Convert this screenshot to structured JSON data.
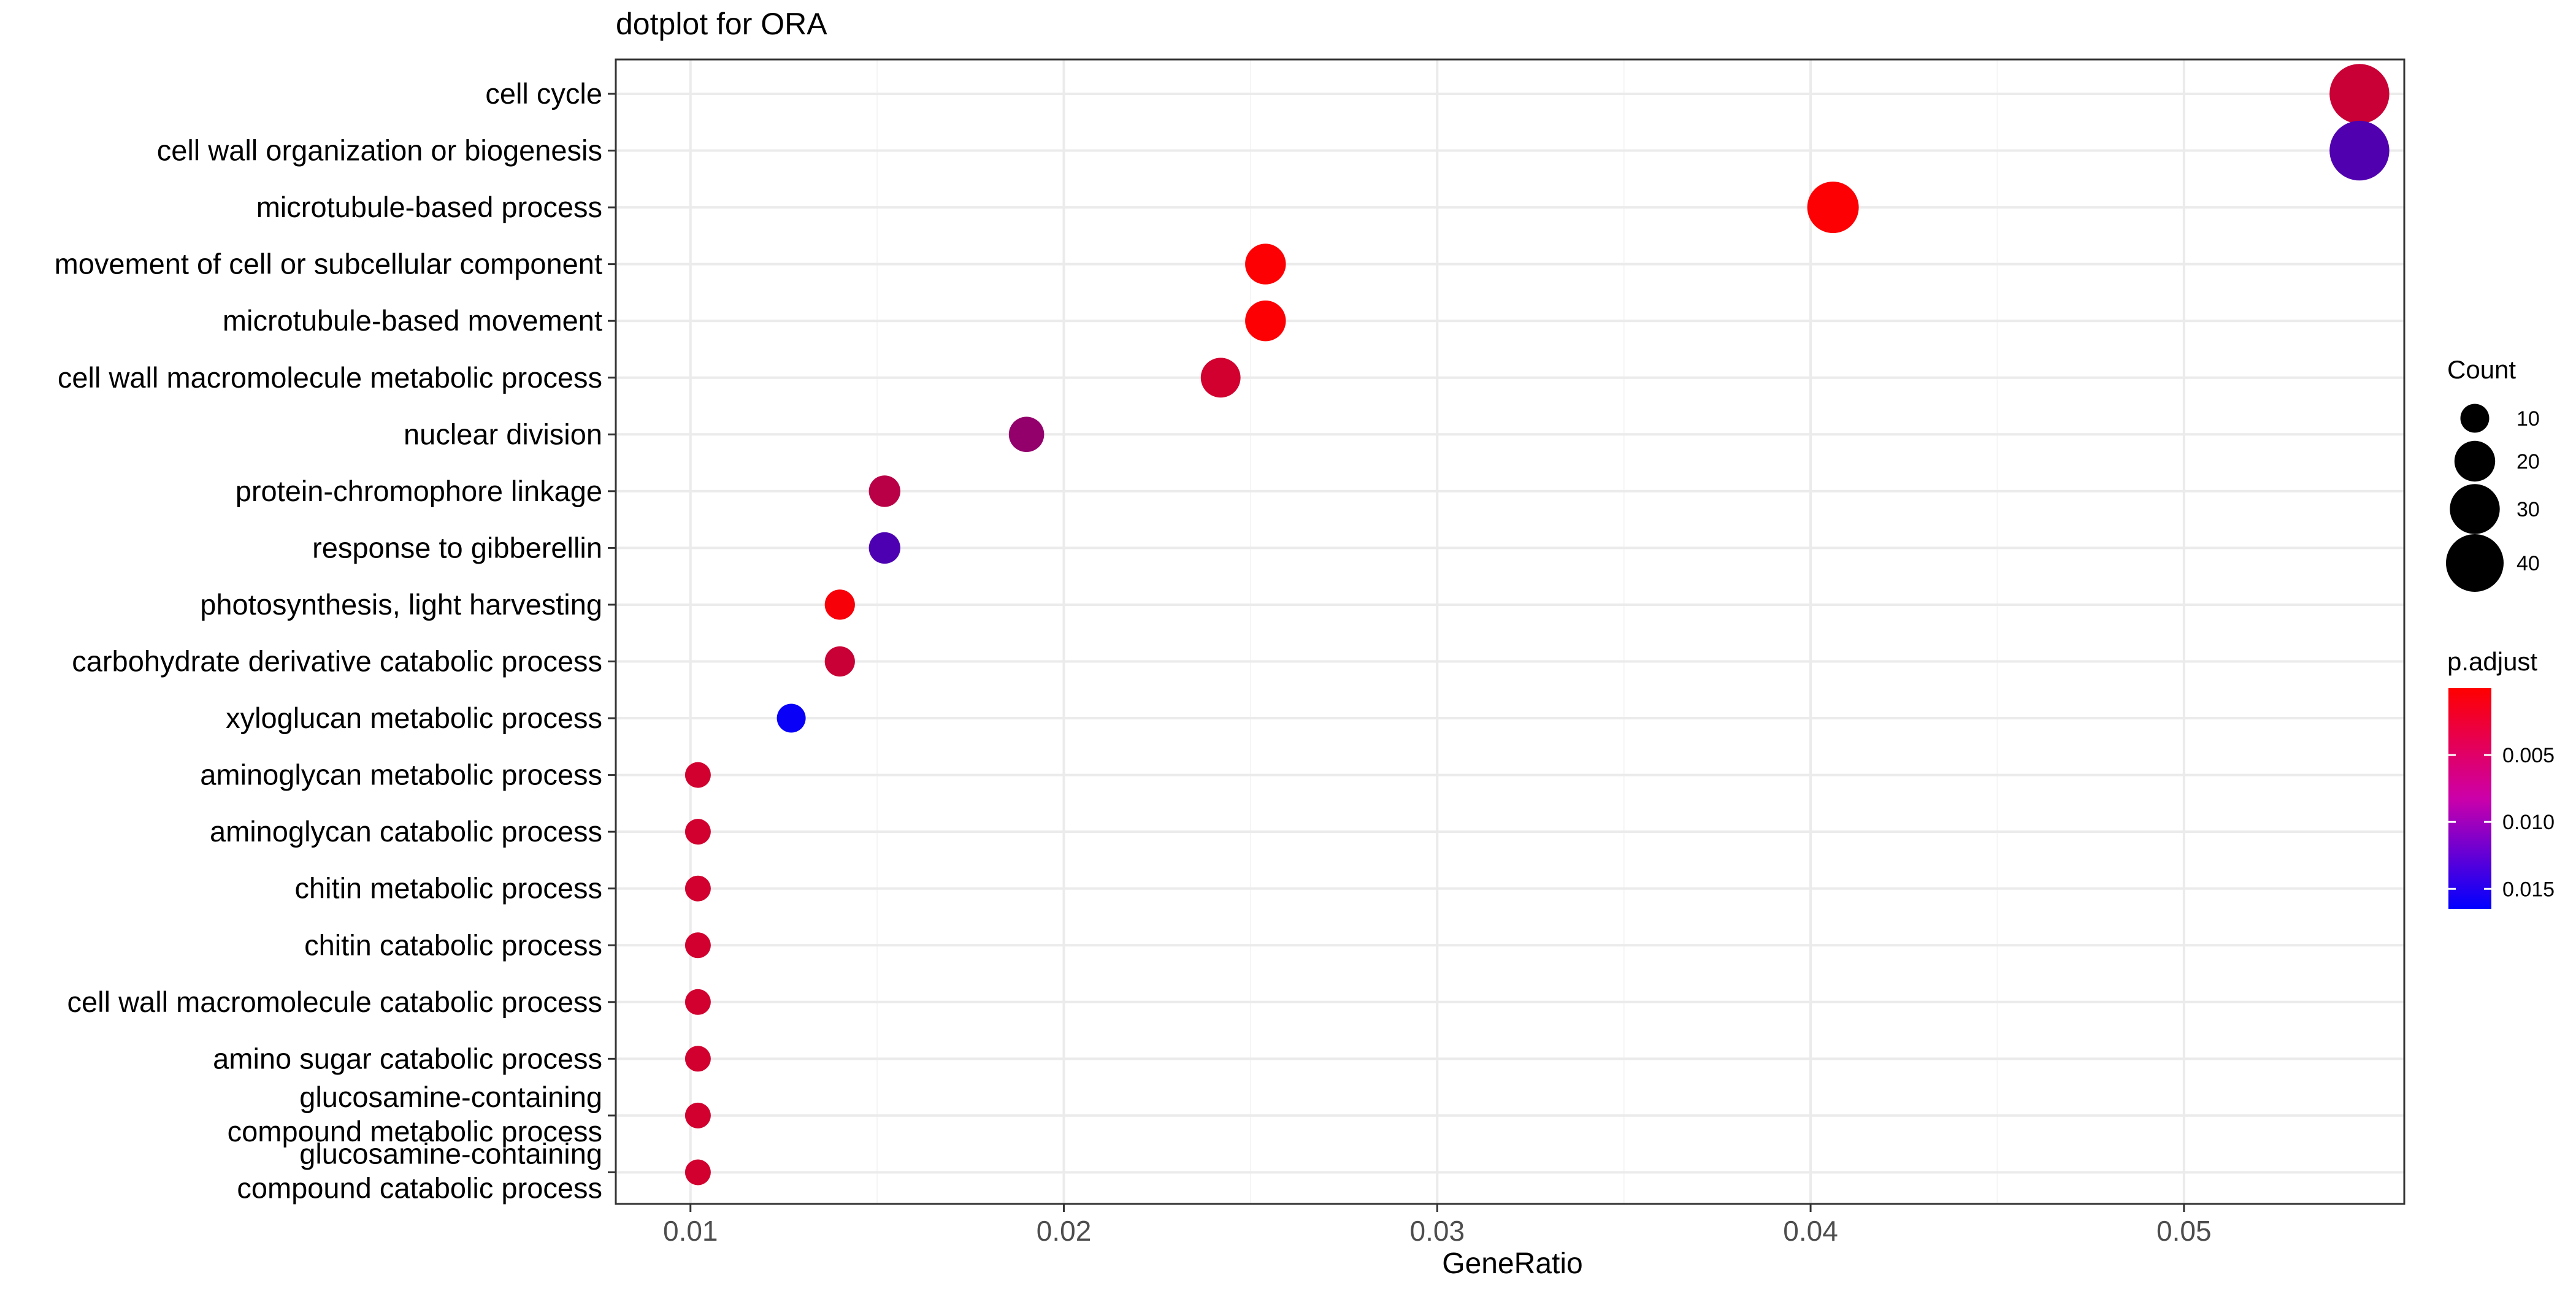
{
  "chart_data": {
    "type": "scatter",
    "title": "dotplot for ORA",
    "xlabel": "GeneRatio",
    "ylabel": "",
    "xlim": [
      0.008,
      0.0559
    ],
    "xticks": [
      0.01,
      0.02,
      0.03,
      0.04,
      0.05
    ],
    "xtick_labels": [
      "0.01",
      "0.02",
      "0.03",
      "0.04",
      "0.05"
    ],
    "grid": true,
    "categories": [
      "cell cycle",
      "cell wall organization or biogenesis",
      "microtubule-based process",
      "movement of cell or subcellular component",
      "microtubule-based movement",
      "cell wall macromolecule metabolic process",
      "nuclear division",
      "protein-chromophore linkage",
      "response to gibberellin",
      "photosynthesis, light harvesting",
      "carbohydrate derivative catabolic process",
      "xyloglucan metabolic process",
      "aminoglycan metabolic process",
      "aminoglycan catabolic process",
      "chitin metabolic process",
      "chitin catabolic process",
      "cell wall macromolecule catabolic process",
      "amino sugar catabolic process",
      [
        "glucosamine-containing",
        "compound metabolic process"
      ],
      [
        "glucosamine-containing",
        "compound catabolic process"
      ]
    ],
    "points": [
      {
        "x": 0.0547,
        "count": 43,
        "p_adjust": 0.0035
      },
      {
        "x": 0.0547,
        "count": 43,
        "p_adjust": 0.0113
      },
      {
        "x": 0.0406,
        "count": 32,
        "p_adjust": 0.0002
      },
      {
        "x": 0.0254,
        "count": 20,
        "p_adjust": 0.0002
      },
      {
        "x": 0.0254,
        "count": 20,
        "p_adjust": 0.0002
      },
      {
        "x": 0.0242,
        "count": 19,
        "p_adjust": 0.003
      },
      {
        "x": 0.019,
        "count": 15,
        "p_adjust": 0.007
      },
      {
        "x": 0.0152,
        "count": 12,
        "p_adjust": 0.0045
      },
      {
        "x": 0.0152,
        "count": 12,
        "p_adjust": 0.0115
      },
      {
        "x": 0.014,
        "count": 11,
        "p_adjust": 0.0005
      },
      {
        "x": 0.014,
        "count": 11,
        "p_adjust": 0.0035
      },
      {
        "x": 0.0127,
        "count": 10,
        "p_adjust": 0.016
      },
      {
        "x": 0.0102,
        "count": 8,
        "p_adjust": 0.003
      },
      {
        "x": 0.0102,
        "count": 8,
        "p_adjust": 0.003
      },
      {
        "x": 0.0102,
        "count": 8,
        "p_adjust": 0.003
      },
      {
        "x": 0.0102,
        "count": 8,
        "p_adjust": 0.003
      },
      {
        "x": 0.0102,
        "count": 8,
        "p_adjust": 0.003
      },
      {
        "x": 0.0102,
        "count": 8,
        "p_adjust": 0.003
      },
      {
        "x": 0.0102,
        "count": 8,
        "p_adjust": 0.003
      },
      {
        "x": 0.0102,
        "count": 8,
        "p_adjust": 0.003
      }
    ],
    "size_legend": {
      "title": "Count",
      "values": [
        10,
        20,
        30,
        40
      ],
      "labels": [
        "10",
        "20",
        "30",
        "40"
      ]
    },
    "color_legend": {
      "title": "p.adjust",
      "range": [
        0.0,
        0.0165
      ],
      "ticks": [
        0.005,
        0.01,
        0.015
      ],
      "tick_labels": [
        "0.005",
        "0.010",
        "0.015"
      ],
      "low_color": "#FF0000",
      "high_color": "#0000FF"
    },
    "colors": {
      "panel_border": "#333333",
      "grid_major": "#EBEBEB",
      "grid_minor": "#F5F5F5",
      "text": "#000000",
      "tick_text": "#4D4D4D"
    }
  }
}
